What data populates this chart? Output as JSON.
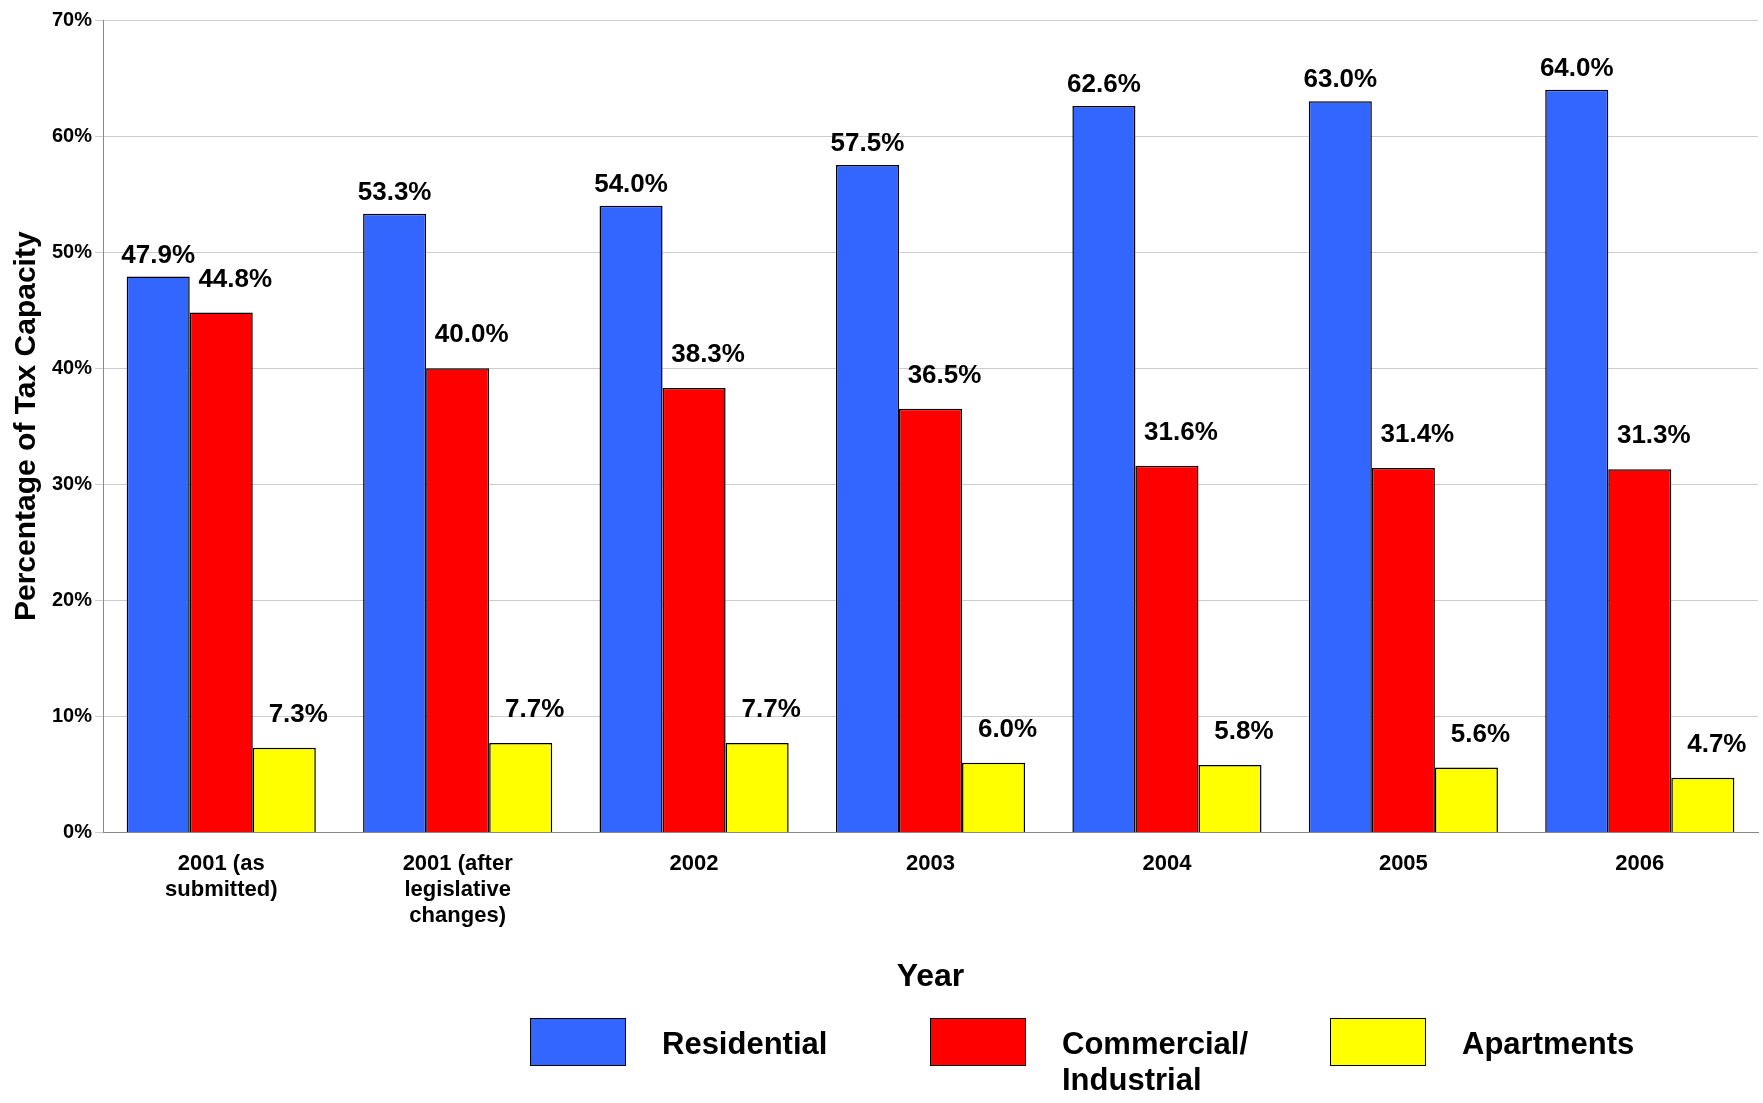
{
  "chart_data": {
    "type": "bar",
    "xlabel": "Year",
    "ylabel": "Percentage of Tax Capacity",
    "categories": [
      "2001  (as submitted)",
      "2001 (after legislative changes)",
      "2002",
      "2003",
      "2004",
      "2005",
      "2006"
    ],
    "series": [
      {
        "name": "Residential",
        "color": "#3366ff",
        "values": [
          47.9,
          53.3,
          54.0,
          57.5,
          62.6,
          63.0,
          64.0
        ],
        "value_labels": [
          "47.9%",
          "53.3%",
          "54.0%",
          "57.5%",
          "62.6%",
          "63.0%",
          "64.0%"
        ]
      },
      {
        "name": "Commercial/ Industrial",
        "color": "#ff0000",
        "values": [
          44.8,
          40.0,
          38.3,
          36.5,
          31.6,
          31.4,
          31.3
        ],
        "value_labels": [
          "44.8%",
          "40.0%",
          "38.3%",
          "36.5%",
          "31.6%",
          "31.4%",
          "31.3%"
        ]
      },
      {
        "name": "Apartments",
        "color": "#ffff00",
        "values": [
          7.3,
          7.7,
          7.7,
          6.0,
          5.8,
          5.6,
          4.7
        ],
        "value_labels": [
          "7.3%",
          "7.7%",
          "7.7%",
          "6.0%",
          "5.8%",
          "5.6%",
          "4.7%"
        ]
      }
    ],
    "ylim": [
      0,
      70
    ],
    "yticks": [
      {
        "value": 0,
        "label": "0%"
      },
      {
        "value": 10,
        "label": "10%"
      },
      {
        "value": 20,
        "label": "20%"
      },
      {
        "value": 30,
        "label": "30%"
      },
      {
        "value": 40,
        "label": "40%"
      },
      {
        "value": 50,
        "label": "50%"
      },
      {
        "value": 60,
        "label": "60%"
      },
      {
        "value": 70,
        "label": "70%"
      }
    ],
    "grid": "y",
    "legend": "bottom"
  }
}
